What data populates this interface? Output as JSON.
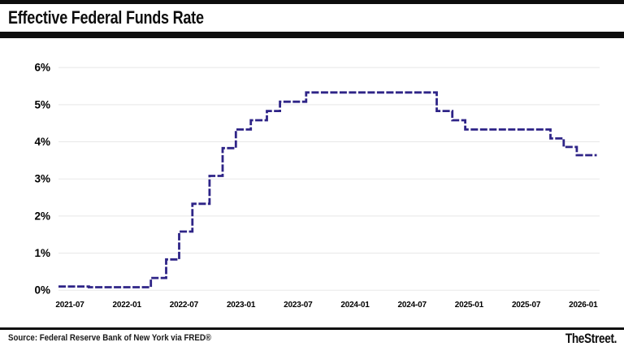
{
  "header": {
    "title": "Effective Federal Funds Rate"
  },
  "footer": {
    "source": "Source: Federal Reserve Bank of New York via FRED®",
    "brand": "TheStreet."
  },
  "colors": {
    "line": "#2e2487",
    "grid": "#e8e8e8",
    "accent_bars": "#0d0d0d",
    "background": "#ffffff"
  },
  "chart_data": {
    "type": "line",
    "line_style": "step-after-dashed",
    "title": "Effective Federal Funds Rate",
    "xlabel": "",
    "ylabel": "",
    "grid": true,
    "legend": "none",
    "ylim": [
      0,
      6
    ],
    "y_ticks": [
      {
        "label": "6%",
        "value": 6
      },
      {
        "label": "5%",
        "value": 5
      },
      {
        "label": "4%",
        "value": 4
      },
      {
        "label": "3%",
        "value": 3
      },
      {
        "label": "2%",
        "value": 2
      },
      {
        "label": "1%",
        "value": 1
      },
      {
        "label": "0%",
        "value": 0
      }
    ],
    "x_ticks": [
      {
        "label": "2021-07",
        "date": "2021-07-01"
      },
      {
        "label": "2022-01",
        "date": "2022-01-01"
      },
      {
        "label": "2022-07",
        "date": "2022-07-01"
      },
      {
        "label": "2023-01",
        "date": "2023-01-01"
      },
      {
        "label": "2023-07",
        "date": "2023-07-01"
      },
      {
        "label": "2024-01",
        "date": "2024-01-01"
      },
      {
        "label": "2024-07",
        "date": "2024-07-01"
      },
      {
        "label": "2025-01",
        "date": "2025-01-01"
      },
      {
        "label": "2025-07",
        "date": "2025-07-01"
      },
      {
        "label": "2026-01",
        "date": "2026-01-01"
      }
    ],
    "series": [
      {
        "name": "Effective Federal Funds Rate (%)",
        "points": [
          {
            "date": "2021-07-01",
            "value": 0.1
          },
          {
            "date": "2021-09-01",
            "value": 0.08
          },
          {
            "date": "2022-03-17",
            "value": 0.33
          },
          {
            "date": "2022-05-05",
            "value": 0.83
          },
          {
            "date": "2022-06-16",
            "value": 1.58
          },
          {
            "date": "2022-07-28",
            "value": 2.33
          },
          {
            "date": "2022-09-22",
            "value": 3.08
          },
          {
            "date": "2022-11-03",
            "value": 3.83
          },
          {
            "date": "2022-12-15",
            "value": 4.33
          },
          {
            "date": "2023-02-02",
            "value": 4.58
          },
          {
            "date": "2023-03-23",
            "value": 4.83
          },
          {
            "date": "2023-05-04",
            "value": 5.08
          },
          {
            "date": "2023-07-27",
            "value": 5.33
          },
          {
            "date": "2024-09-19",
            "value": 4.83
          },
          {
            "date": "2024-11-08",
            "value": 4.58
          },
          {
            "date": "2024-12-19",
            "value": 4.33
          },
          {
            "date": "2025-09-18",
            "value": 4.09
          },
          {
            "date": "2025-10-30",
            "value": 3.86
          },
          {
            "date": "2025-12-11",
            "value": 3.64
          },
          {
            "date": "2026-02-14",
            "value": 3.64
          }
        ]
      }
    ]
  }
}
